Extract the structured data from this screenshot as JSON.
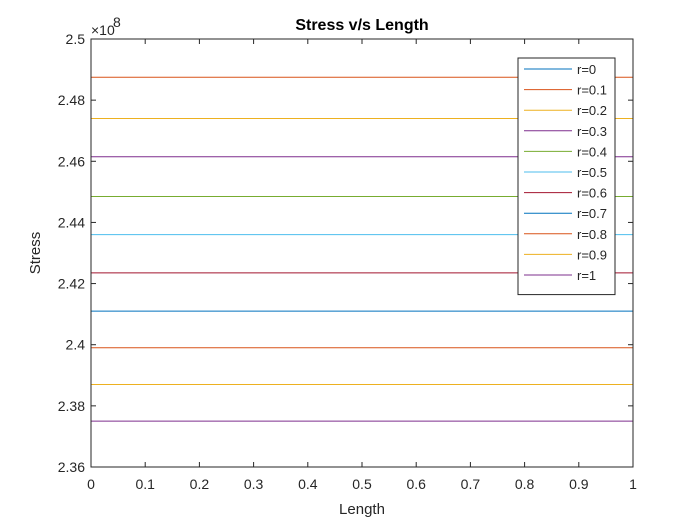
{
  "chart_data": {
    "type": "line",
    "title": "Stress v/s Length",
    "xlabel": "Length",
    "ylabel": "Stress",
    "xlim": [
      0,
      1
    ],
    "ylim": [
      2.36,
      2.5
    ],
    "y_scale_exponent_label": "×10",
    "y_scale_exponent": "8",
    "x_ticks": [
      "0",
      "0.1",
      "0.2",
      "0.3",
      "0.4",
      "0.5",
      "0.6",
      "0.7",
      "0.8",
      "0.9",
      "1"
    ],
    "y_ticks": [
      "2.36",
      "2.38",
      "2.4",
      "2.42",
      "2.44",
      "2.46",
      "2.48",
      "2.5"
    ],
    "grid": false,
    "legend_position": "top-right",
    "x": [
      0,
      1
    ],
    "series": [
      {
        "name": "r=0",
        "values": [
          2.5,
          2.5
        ],
        "color": "#0072BD"
      },
      {
        "name": "r=0.1",
        "values": [
          2.4875,
          2.4875
        ],
        "color": "#D95319"
      },
      {
        "name": "r=0.2",
        "values": [
          2.474,
          2.474
        ],
        "color": "#EDB120"
      },
      {
        "name": "r=0.3",
        "values": [
          2.4615,
          2.4615
        ],
        "color": "#7E2F8E"
      },
      {
        "name": "r=0.4",
        "values": [
          2.4485,
          2.4485
        ],
        "color": "#77AC30"
      },
      {
        "name": "r=0.5",
        "values": [
          2.436,
          2.436
        ],
        "color": "#4DBEEE"
      },
      {
        "name": "r=0.6",
        "values": [
          2.4235,
          2.4235
        ],
        "color": "#A2142F"
      },
      {
        "name": "r=0.7",
        "values": [
          2.411,
          2.411
        ],
        "color": "#0072BD"
      },
      {
        "name": "r=0.8",
        "values": [
          2.399,
          2.399
        ],
        "color": "#D95319"
      },
      {
        "name": "r=0.9",
        "values": [
          2.387,
          2.387
        ],
        "color": "#EDB120"
      },
      {
        "name": "r=1",
        "values": [
          2.375,
          2.375
        ],
        "color": "#7E2F8E"
      }
    ]
  }
}
